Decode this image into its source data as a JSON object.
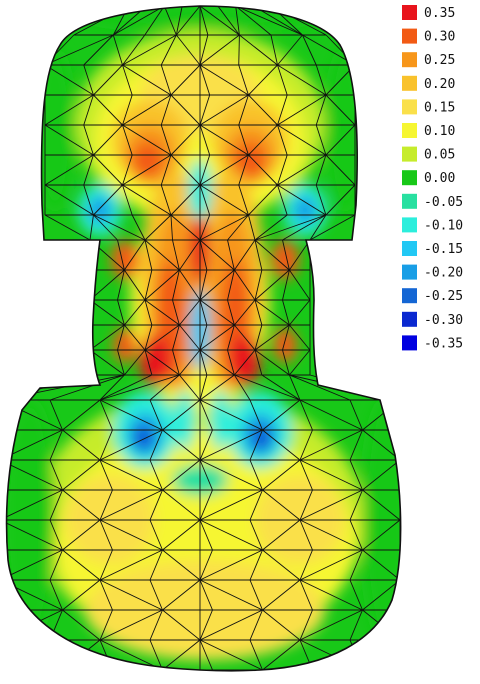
{
  "legend": {
    "entries": [
      {
        "label": "0.35",
        "color": "#e8141c"
      },
      {
        "label": "0.30",
        "color": "#f25a14"
      },
      {
        "label": "0.25",
        "color": "#f7961a"
      },
      {
        "label": "0.20",
        "color": "#f9c22c"
      },
      {
        "label": "0.15",
        "color": "#fae04a"
      },
      {
        "label": "0.10",
        "color": "#f6f632"
      },
      {
        "label": "0.05",
        "color": "#c6ec2c"
      },
      {
        "label": "0.00",
        "color": "#18c818"
      },
      {
        "label": "-0.05",
        "color": "#28e0a0"
      },
      {
        "label": "-0.10",
        "color": "#2ceedc"
      },
      {
        "label": "-0.15",
        "color": "#22c8f4"
      },
      {
        "label": "-0.20",
        "color": "#189ee6"
      },
      {
        "label": "-0.25",
        "color": "#1466d4"
      },
      {
        "label": "-0.30",
        "color": "#0a28d0"
      },
      {
        "label": "-0.35",
        "color": "#0000e0"
      }
    ]
  },
  "mesh": {
    "line_color": "#111111",
    "base_color": "#18c818"
  }
}
